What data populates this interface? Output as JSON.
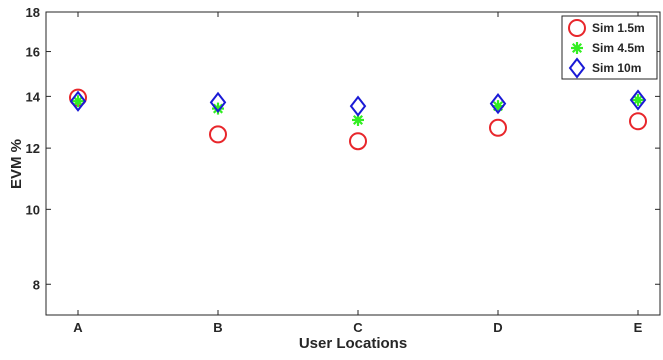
{
  "chart_data": {
    "type": "scatter",
    "title": "",
    "xlabel": "User Locations",
    "ylabel": "EVM %",
    "categories": [
      "A",
      "B",
      "C",
      "D",
      "E"
    ],
    "ylim": [
      7.3,
      18
    ],
    "yscale": "log",
    "yticks": [
      8,
      10,
      12,
      14,
      16,
      18
    ],
    "grid": false,
    "legend_position": "top-right",
    "series": [
      {
        "name": "Sim 1.5m",
        "marker": "circle",
        "color": "#e8262b",
        "values": [
          13.95,
          12.5,
          12.25,
          12.75,
          13.0
        ]
      },
      {
        "name": "Sim 4.5m",
        "marker": "asterisk",
        "color": "#33ee22",
        "values": [
          13.8,
          13.5,
          13.05,
          13.6,
          13.85
        ]
      },
      {
        "name": "Sim 10m",
        "marker": "diamond",
        "color": "#1a1ad6",
        "values": [
          13.8,
          13.75,
          13.6,
          13.7,
          13.85
        ]
      }
    ]
  }
}
